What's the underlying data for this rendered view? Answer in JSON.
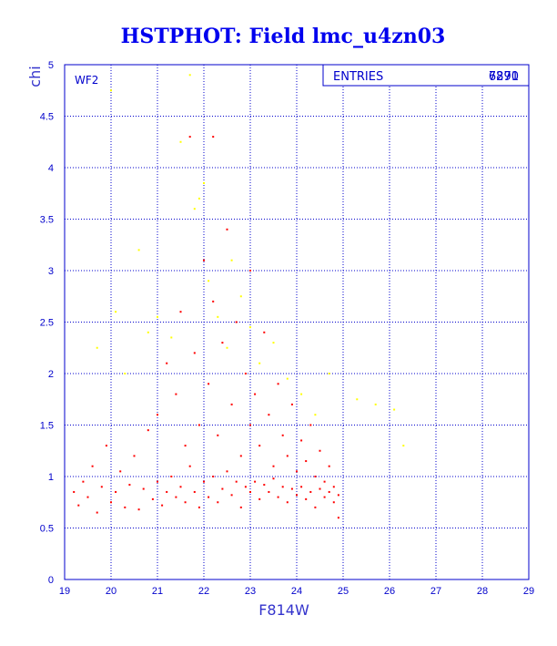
{
  "chart_data": {
    "type": "scatter",
    "title": "HSTPHOT: Field lmc_u4zn03",
    "xlabel": "F814W",
    "ylabel": "chi",
    "panel_tag": "WF2",
    "stats_box": {
      "label": "ENTRIES",
      "values": [
        "7291",
        "6870"
      ]
    },
    "xlim": [
      19,
      29
    ],
    "ylim": [
      0,
      5
    ],
    "x_ticks": [
      "19",
      "20",
      "21",
      "22",
      "23",
      "24",
      "25",
      "26",
      "27",
      "28",
      "29"
    ],
    "y_ticks": [
      "0",
      "0.5",
      "1",
      "1.5",
      "2",
      "2.5",
      "3",
      "3.5",
      "4",
      "4.5",
      "5"
    ],
    "grid": true,
    "series": [
      {
        "color": "#ff0000",
        "points": [
          [
            19.2,
            0.85
          ],
          [
            19.3,
            0.72
          ],
          [
            19.4,
            0.95
          ],
          [
            19.5,
            0.8
          ],
          [
            19.6,
            1.1
          ],
          [
            19.7,
            0.65
          ],
          [
            19.8,
            0.9
          ],
          [
            19.9,
            1.3
          ],
          [
            20.0,
            0.75
          ],
          [
            20.1,
            0.85
          ],
          [
            20.2,
            1.05
          ],
          [
            20.3,
            0.7
          ],
          [
            20.4,
            0.92
          ],
          [
            20.5,
            1.2
          ],
          [
            20.6,
            0.68
          ],
          [
            20.7,
            0.88
          ],
          [
            20.8,
            1.45
          ],
          [
            20.9,
            0.78
          ],
          [
            21.0,
            0.95
          ],
          [
            21.0,
            1.6
          ],
          [
            21.1,
            0.72
          ],
          [
            21.2,
            0.85
          ],
          [
            21.2,
            2.1
          ],
          [
            21.3,
            1.0
          ],
          [
            21.4,
            0.8
          ],
          [
            21.4,
            1.8
          ],
          [
            21.5,
            0.9
          ],
          [
            21.5,
            2.6
          ],
          [
            21.6,
            0.75
          ],
          [
            21.6,
            1.3
          ],
          [
            21.7,
            1.1
          ],
          [
            21.7,
            4.3
          ],
          [
            21.8,
            0.85
          ],
          [
            21.8,
            2.2
          ],
          [
            21.9,
            0.7
          ],
          [
            21.9,
            1.5
          ],
          [
            22.0,
            0.95
          ],
          [
            22.0,
            3.1
          ],
          [
            22.1,
            0.8
          ],
          [
            22.1,
            1.9
          ],
          [
            22.2,
            1.0
          ],
          [
            22.2,
            2.7
          ],
          [
            22.2,
            4.3
          ],
          [
            22.3,
            0.75
          ],
          [
            22.3,
            1.4
          ],
          [
            22.4,
            0.88
          ],
          [
            22.4,
            2.3
          ],
          [
            22.5,
            1.05
          ],
          [
            22.5,
            3.4
          ],
          [
            22.6,
            0.82
          ],
          [
            22.6,
            1.7
          ],
          [
            22.7,
            0.95
          ],
          [
            22.7,
            2.5
          ],
          [
            22.8,
            0.7
          ],
          [
            22.8,
            1.2
          ],
          [
            22.9,
            0.9
          ],
          [
            22.9,
            2.0
          ],
          [
            23.0,
            0.85
          ],
          [
            23.0,
            1.5
          ],
          [
            23.0,
            3.0
          ],
          [
            23.1,
            0.95
          ],
          [
            23.1,
            1.8
          ],
          [
            23.2,
            0.78
          ],
          [
            23.2,
            1.3
          ],
          [
            23.3,
            0.92
          ],
          [
            23.3,
            2.4
          ],
          [
            23.4,
            0.85
          ],
          [
            23.4,
            1.6
          ],
          [
            23.5,
            0.98
          ],
          [
            23.5,
            1.1
          ],
          [
            23.6,
            0.8
          ],
          [
            23.6,
            1.9
          ],
          [
            23.7,
            0.9
          ],
          [
            23.7,
            1.4
          ],
          [
            23.8,
            0.75
          ],
          [
            23.8,
            1.2
          ],
          [
            23.9,
            0.88
          ],
          [
            23.9,
            1.7
          ],
          [
            24.0,
            0.82
          ],
          [
            24.0,
            1.05
          ],
          [
            24.1,
            0.9
          ],
          [
            24.1,
            1.35
          ],
          [
            24.2,
            0.78
          ],
          [
            24.2,
            1.15
          ],
          [
            24.3,
            0.85
          ],
          [
            24.3,
            1.5
          ],
          [
            24.4,
            0.7
          ],
          [
            24.4,
            1.0
          ],
          [
            24.5,
            0.88
          ],
          [
            24.5,
            1.25
          ],
          [
            24.6,
            0.8
          ],
          [
            24.6,
            0.95
          ],
          [
            24.7,
            0.85
          ],
          [
            24.7,
            1.1
          ],
          [
            24.8,
            0.75
          ],
          [
            24.8,
            0.9
          ],
          [
            24.9,
            0.82
          ],
          [
            24.9,
            0.6
          ]
        ]
      },
      {
        "color": "#ffff00",
        "points": [
          [
            19.7,
            2.25
          ],
          [
            20.0,
            4.75
          ],
          [
            20.1,
            2.6
          ],
          [
            20.3,
            2.0
          ],
          [
            20.6,
            3.2
          ],
          [
            20.8,
            2.4
          ],
          [
            21.0,
            2.55
          ],
          [
            21.3,
            2.35
          ],
          [
            21.5,
            4.25
          ],
          [
            21.7,
            4.9
          ],
          [
            21.8,
            3.6
          ],
          [
            21.9,
            3.7
          ],
          [
            22.0,
            3.85
          ],
          [
            22.1,
            2.9
          ],
          [
            22.3,
            2.55
          ],
          [
            22.5,
            2.25
          ],
          [
            22.6,
            3.1
          ],
          [
            22.8,
            2.75
          ],
          [
            23.0,
            2.45
          ],
          [
            23.2,
            2.1
          ],
          [
            23.5,
            2.3
          ],
          [
            23.8,
            1.95
          ],
          [
            24.1,
            1.8
          ],
          [
            24.4,
            1.6
          ],
          [
            24.7,
            2.0
          ],
          [
            25.3,
            1.75
          ],
          [
            25.7,
            1.7
          ],
          [
            26.1,
            1.65
          ],
          [
            26.3,
            1.3
          ]
        ]
      }
    ]
  }
}
